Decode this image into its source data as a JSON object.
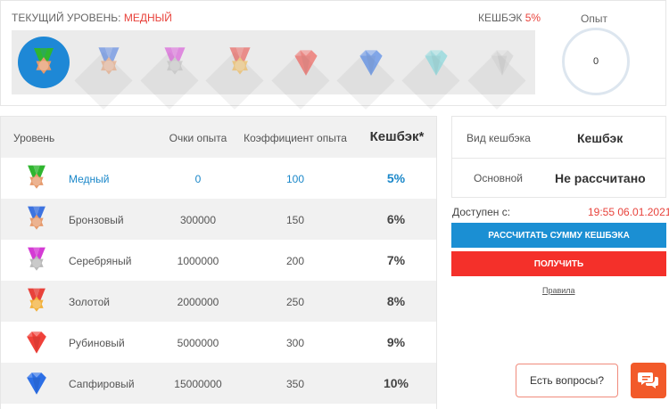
{
  "status": {
    "current_level_label": "ТЕКУЩИЙ УРОВЕНЬ:",
    "current_level_value": "МЕДНЫЙ",
    "cashback_label": "КЕШБЭК",
    "cashback_value": "5%",
    "experience_label": "Опыт",
    "experience_value": "0"
  },
  "medal_strip": [
    {
      "icon": "copper-medal-icon",
      "ribbon": "#2fb52f",
      "coin": "#e69a6c",
      "active": true
    },
    {
      "icon": "bronze-medal-icon",
      "ribbon": "#3d73e0",
      "coin": "#e69a6c",
      "active": false
    },
    {
      "icon": "silver-medal-icon",
      "ribbon": "#d43bd4",
      "coin": "#b9b9b9",
      "active": false
    },
    {
      "icon": "gold-medal-icon",
      "ribbon": "#e8423b",
      "coin": "#f2b13b",
      "active": false
    },
    {
      "icon": "ruby-gem-icon",
      "gem": "#f0413a",
      "active": false
    },
    {
      "icon": "sapphire-gem-icon",
      "gem": "#2c6fe6",
      "active": false
    },
    {
      "icon": "diamond-gem-icon",
      "gem": "#6fd3d8",
      "active": false
    },
    {
      "icon": "platinum-gem-icon",
      "gem": "#cfcfcf",
      "active": false
    }
  ],
  "table": {
    "headers": {
      "level": "Уровень",
      "points": "Очки опыта",
      "coefficient": "Коэффициент опыта",
      "cashback": "Кешбэк*"
    },
    "rows": [
      {
        "name": "Медный",
        "points": "0",
        "coefficient": "100",
        "cashback": "5%",
        "icon": "copper-medal-icon",
        "ribbon": "#2fb52f",
        "coin": "#e69a6c",
        "current": true
      },
      {
        "name": "Бронзовый",
        "points": "300000",
        "coefficient": "150",
        "cashback": "6%",
        "icon": "bronze-medal-icon",
        "ribbon": "#3d73e0",
        "coin": "#e69a6c",
        "current": false
      },
      {
        "name": "Серебряный",
        "points": "1000000",
        "coefficient": "200",
        "cashback": "7%",
        "icon": "silver-medal-icon",
        "ribbon": "#d43bd4",
        "coin": "#b9b9b9",
        "current": false
      },
      {
        "name": "Золотой",
        "points": "2000000",
        "coefficient": "250",
        "cashback": "8%",
        "icon": "gold-medal-icon",
        "ribbon": "#e8423b",
        "coin": "#f2b13b",
        "current": false
      },
      {
        "name": "Рубиновый",
        "points": "5000000",
        "coefficient": "300",
        "cashback": "9%",
        "icon": "ruby-gem-icon",
        "gem": "#f0413a",
        "current": false
      },
      {
        "name": "Сапфировый",
        "points": "15000000",
        "coefficient": "350",
        "cashback": "10%",
        "icon": "sapphire-gem-icon",
        "gem": "#2c6fe6",
        "current": false
      }
    ]
  },
  "cashback_panel": {
    "type_label": "Вид кешбэка",
    "type_header": "Кешбэк",
    "main_label": "Основной",
    "main_value": "Не рассчитано",
    "available_label": "Доступен с:",
    "available_value": "19:55 06.01.2021",
    "calc_button": "РАССЧИТАТЬ СУММУ КЕШБЭКА",
    "get_button": "ПОЛУЧИТЬ",
    "rules_link": "Правила"
  },
  "help": {
    "questions_button": "Есть вопросы?",
    "chat_icon": "chat-bubbles-icon"
  },
  "colors": {
    "accent_blue": "#1b8fd3",
    "accent_red": "#f4302a",
    "chat_orange": "#f25a2a"
  }
}
